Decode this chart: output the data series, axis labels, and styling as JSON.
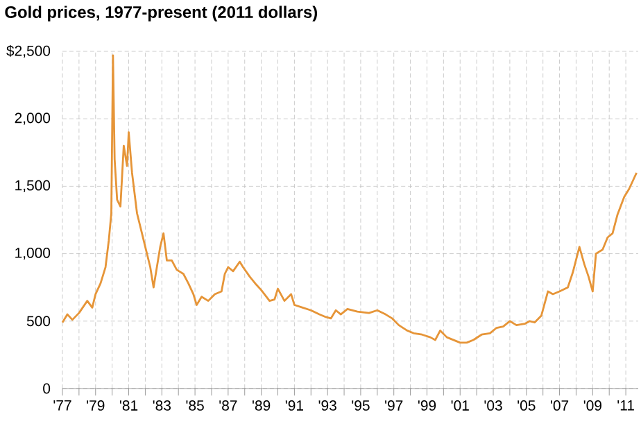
{
  "chart_data": {
    "type": "line",
    "title": "Gold prices, 1977-present (2011 dollars)",
    "x": [
      1977.0,
      1977.3,
      1977.6,
      1978.0,
      1978.5,
      1978.8,
      1979.0,
      1979.3,
      1979.6,
      1979.8,
      1979.95,
      1980.05,
      1980.15,
      1980.3,
      1980.5,
      1980.7,
      1980.9,
      1981.0,
      1981.2,
      1981.5,
      1981.8,
      1982.0,
      1982.3,
      1982.5,
      1982.7,
      1982.9,
      1983.1,
      1983.3,
      1983.6,
      1983.9,
      1984.3,
      1984.6,
      1984.9,
      1985.1,
      1985.4,
      1985.8,
      1986.2,
      1986.6,
      1986.8,
      1987.0,
      1987.3,
      1987.7,
      1987.9,
      1988.3,
      1988.7,
      1989.0,
      1989.5,
      1989.8,
      1990.0,
      1990.4,
      1990.8,
      1991.0,
      1991.5,
      1992.0,
      1992.5,
      1992.9,
      1993.2,
      1993.5,
      1993.8,
      1994.2,
      1994.8,
      1995.5,
      1996.0,
      1996.5,
      1996.9,
      1997.3,
      1997.8,
      1998.2,
      1998.7,
      1999.2,
      1999.5,
      1999.8,
      2000.2,
      2000.6,
      2001.0,
      2001.4,
      2001.8,
      2002.3,
      2002.8,
      2003.2,
      2003.6,
      2004.0,
      2004.4,
      2004.9,
      2005.2,
      2005.5,
      2005.9,
      2006.3,
      2006.6,
      2007.0,
      2007.5,
      2007.8,
      2008.2,
      2008.5,
      2008.75,
      2009.0,
      2009.2,
      2009.6,
      2009.9,
      2010.2,
      2010.5,
      2010.9,
      2011.2,
      2011.5,
      2011.65
    ],
    "values": [
      490,
      550,
      510,
      560,
      650,
      600,
      700,
      780,
      900,
      1100,
      1300,
      2470,
      1700,
      1400,
      1350,
      1800,
      1650,
      1900,
      1600,
      1300,
      1150,
      1050,
      900,
      750,
      900,
      1050,
      1150,
      950,
      950,
      880,
      850,
      780,
      700,
      620,
      680,
      650,
      700,
      720,
      850,
      900,
      870,
      940,
      900,
      830,
      770,
      730,
      650,
      660,
      740,
      650,
      700,
      620,
      600,
      580,
      550,
      530,
      520,
      580,
      550,
      590,
      570,
      560,
      580,
      550,
      520,
      470,
      430,
      410,
      400,
      380,
      360,
      430,
      380,
      360,
      340,
      340,
      360,
      400,
      410,
      450,
      460,
      500,
      470,
      480,
      500,
      490,
      540,
      720,
      700,
      720,
      750,
      860,
      1050,
      920,
      830,
      720,
      1000,
      1030,
      1120,
      1150,
      1290,
      1420,
      1480,
      1560,
      1600
    ],
    "color": "#e69538",
    "xlim": [
      1977,
      2011.75
    ],
    "ylim": [
      0,
      2500
    ],
    "xticks": [
      {
        "value": 1977,
        "label": "'77"
      },
      {
        "value": 1978,
        "label": null
      },
      {
        "value": 1979,
        "label": "'79"
      },
      {
        "value": 1980,
        "label": null
      },
      {
        "value": 1981,
        "label": "'81"
      },
      {
        "value": 1982,
        "label": null
      },
      {
        "value": 1983,
        "label": "'83"
      },
      {
        "value": 1984,
        "label": null
      },
      {
        "value": 1985,
        "label": "'85"
      },
      {
        "value": 1986,
        "label": null
      },
      {
        "value": 1987,
        "label": "'87"
      },
      {
        "value": 1988,
        "label": null
      },
      {
        "value": 1989,
        "label": "'89"
      },
      {
        "value": 1990,
        "label": null
      },
      {
        "value": 1991,
        "label": "'91"
      },
      {
        "value": 1992,
        "label": null
      },
      {
        "value": 1993,
        "label": "'93"
      },
      {
        "value": 1994,
        "label": null
      },
      {
        "value": 1995,
        "label": "'95"
      },
      {
        "value": 1996,
        "label": null
      },
      {
        "value": 1997,
        "label": "'97"
      },
      {
        "value": 1998,
        "label": null
      },
      {
        "value": 1999,
        "label": "'99"
      },
      {
        "value": 2000,
        "label": null
      },
      {
        "value": 2001,
        "label": "'01"
      },
      {
        "value": 2002,
        "label": null
      },
      {
        "value": 2003,
        "label": "'03"
      },
      {
        "value": 2004,
        "label": null
      },
      {
        "value": 2005,
        "label": "'05"
      },
      {
        "value": 2006,
        "label": null
      },
      {
        "value": 2007,
        "label": "'07"
      },
      {
        "value": 2008,
        "label": null
      },
      {
        "value": 2009,
        "label": "'09"
      },
      {
        "value": 2010,
        "label": null
      },
      {
        "value": 2011,
        "label": "'11"
      }
    ],
    "yticks": [
      0,
      500,
      {
        "value": 1000,
        "label": "1,000"
      },
      {
        "value": 1500,
        "label": "1,500"
      },
      {
        "value": 2000,
        "label": "2,000"
      },
      {
        "value": 2500,
        "label": "$2,500"
      }
    ],
    "grid": true,
    "line_style": "solid",
    "marker": "none"
  }
}
